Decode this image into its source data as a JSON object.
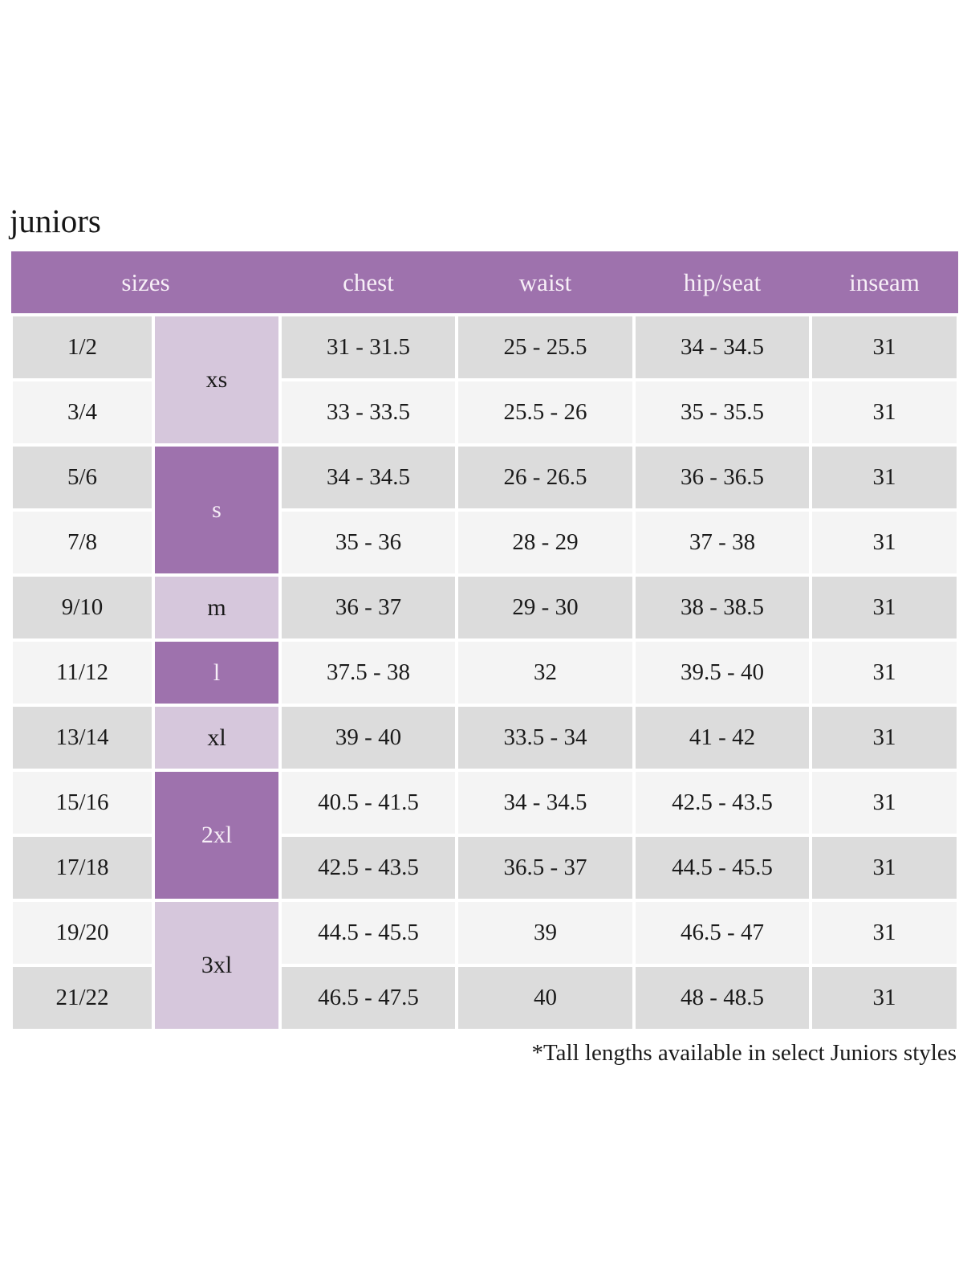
{
  "page": {
    "title": "juniors",
    "footnote": "*Tall lengths available in select Juniors styles"
  },
  "colors": {
    "header_purple": "#9e72ad",
    "group_light_purple": "#d6c7dc",
    "row_gray": "#dcdcdc",
    "row_light_gray": "#f4f4f4",
    "header_text": "#f7eff7",
    "body_text": "#1a1a1a"
  },
  "table": {
    "headers": [
      "sizes",
      "chest",
      "waist",
      "hip/seat",
      "inseam"
    ],
    "size_groups": [
      {
        "label": "xs",
        "shade": "light",
        "rows": [
          {
            "size": "1/2",
            "chest": "31 - 31.5",
            "waist": "25 - 25.5",
            "hip_seat": "34 - 34.5",
            "inseam": "31"
          },
          {
            "size": "3/4",
            "chest": "33 - 33.5",
            "waist": "25.5 - 26",
            "hip_seat": "35 - 35.5",
            "inseam": "31"
          }
        ]
      },
      {
        "label": "s",
        "shade": "dark",
        "rows": [
          {
            "size": "5/6",
            "chest": "34 - 34.5",
            "waist": "26 - 26.5",
            "hip_seat": "36 - 36.5",
            "inseam": "31"
          },
          {
            "size": "7/8",
            "chest": "35 - 36",
            "waist": "28 - 29",
            "hip_seat": "37 - 38",
            "inseam": "31"
          }
        ]
      },
      {
        "label": "m",
        "shade": "light",
        "rows": [
          {
            "size": "9/10",
            "chest": "36 - 37",
            "waist": "29 - 30",
            "hip_seat": "38 - 38.5",
            "inseam": "31"
          }
        ]
      },
      {
        "label": "l",
        "shade": "dark",
        "rows": [
          {
            "size": "11/12",
            "chest": "37.5 - 38",
            "waist": "32",
            "hip_seat": "39.5 - 40",
            "inseam": "31"
          }
        ]
      },
      {
        "label": "xl",
        "shade": "light",
        "rows": [
          {
            "size": "13/14",
            "chest": "39 - 40",
            "waist": "33.5 - 34",
            "hip_seat": "41 - 42",
            "inseam": "31"
          }
        ]
      },
      {
        "label": "2xl",
        "shade": "dark",
        "rows": [
          {
            "size": "15/16",
            "chest": "40.5 - 41.5",
            "waist": "34 - 34.5",
            "hip_seat": "42.5 - 43.5",
            "inseam": "31"
          },
          {
            "size": "17/18",
            "chest": "42.5 - 43.5",
            "waist": "36.5 - 37",
            "hip_seat": "44.5 - 45.5",
            "inseam": "31"
          }
        ]
      },
      {
        "label": "3xl",
        "shade": "light",
        "rows": [
          {
            "size": "19/20",
            "chest": "44.5 - 45.5",
            "waist": "39",
            "hip_seat": "46.5 - 47",
            "inseam": "31"
          },
          {
            "size": "21/22",
            "chest": "46.5 - 47.5",
            "waist": "40",
            "hip_seat": "48 - 48.5",
            "inseam": "31"
          }
        ]
      }
    ]
  }
}
